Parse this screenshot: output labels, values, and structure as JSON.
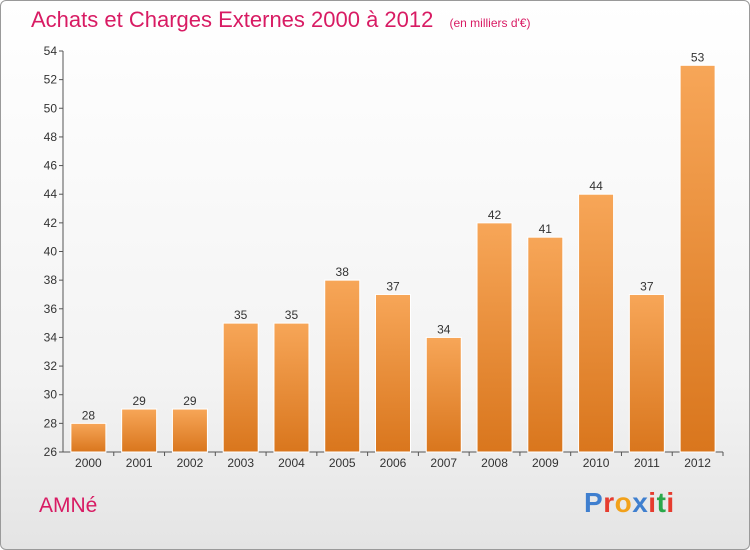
{
  "header": {
    "title": "Achats et Charges Externes 2000 à 2012",
    "subtitle": "(en milliers d'€)"
  },
  "footer": {
    "commune": "AMNé",
    "logo_text": "Proxiti"
  },
  "colors": {
    "title": "#d81b63",
    "bar_top": "#f7a658",
    "bar_bottom": "#d9761d",
    "logo_letters": [
      "#3f7fcf",
      "#e63c2f",
      "#f2a11a",
      "#3f7fcf",
      "#e63c2f",
      "#2aa84a",
      "#e63c2f"
    ]
  },
  "chart_data": {
    "type": "bar",
    "title": "Achats et Charges Externes 2000 à 2012",
    "subtitle": "(en milliers d'€)",
    "categories": [
      "2000",
      "2001",
      "2002",
      "2003",
      "2004",
      "2005",
      "2006",
      "2007",
      "2008",
      "2009",
      "2010",
      "2011",
      "2012"
    ],
    "values": [
      28,
      29,
      29,
      35,
      35,
      38,
      37,
      34,
      42,
      41,
      44,
      37,
      53
    ],
    "ylim": [
      26,
      54
    ],
    "yticks": [
      26,
      28,
      30,
      32,
      34,
      36,
      38,
      40,
      42,
      44,
      46,
      48,
      50,
      52,
      54
    ],
    "grid": false,
    "data_labels": true
  }
}
